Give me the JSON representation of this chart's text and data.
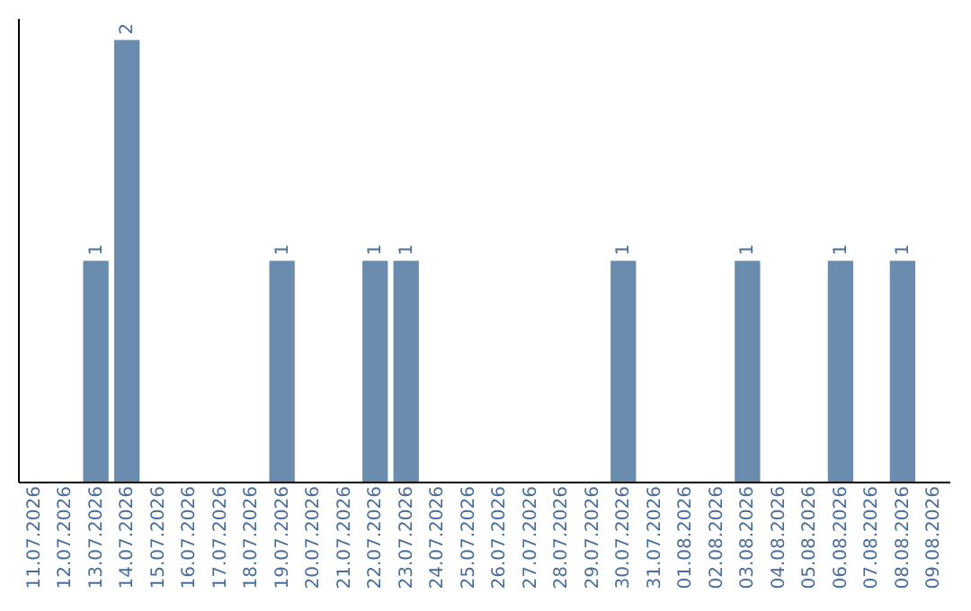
{
  "chart_data": {
    "type": "bar",
    "categories": [
      "11.07.2026",
      "12.07.2026",
      "13.07.2026",
      "14.07.2026",
      "15.07.2026",
      "16.07.2026",
      "17.07.2026",
      "18.07.2026",
      "19.07.2026",
      "20.07.2026",
      "21.07.2026",
      "22.07.2026",
      "23.07.2026",
      "24.07.2026",
      "25.07.2026",
      "26.07.2026",
      "27.07.2026",
      "28.07.2026",
      "29.07.2026",
      "30.07.2026",
      "31.07.2026",
      "01.08.2026",
      "02.08.2026",
      "03.08.2026",
      "04.08.2026",
      "05.08.2026",
      "06.08.2026",
      "07.08.2026",
      "08.08.2026",
      "09.08.2026"
    ],
    "values": [
      0,
      0,
      1,
      2,
      0,
      0,
      0,
      0,
      1,
      0,
      0,
      1,
      1,
      0,
      0,
      0,
      0,
      0,
      0,
      1,
      0,
      0,
      0,
      1,
      0,
      0,
      1,
      0,
      1,
      0
    ],
    "value_labels": [
      null,
      null,
      "1",
      "2",
      null,
      null,
      null,
      null,
      "1",
      null,
      null,
      "1",
      "1",
      null,
      null,
      null,
      null,
      null,
      null,
      "1",
      null,
      null,
      null,
      "1",
      null,
      null,
      "1",
      null,
      "1",
      null
    ],
    "color": "#6a8caf",
    "ylim": [
      0,
      2.1
    ],
    "grid": false,
    "tick_labels": "x"
  }
}
